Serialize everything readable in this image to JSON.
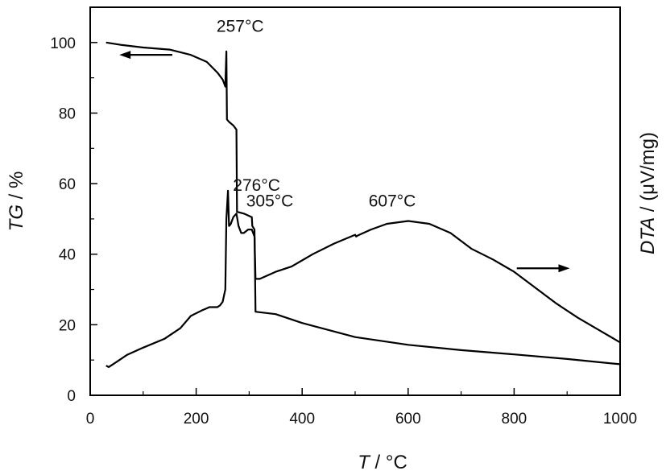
{
  "chart_data": {
    "type": "line",
    "xlabel": {
      "var": "T",
      "unit": " / °C"
    },
    "ylabel_left": {
      "var": "TG",
      "unit": " / %"
    },
    "ylabel_right": {
      "var": "DTA",
      "unit": " / (μV/mg)"
    },
    "xlim": [
      0,
      1000
    ],
    "ylim": [
      0,
      110
    ],
    "x_ticks": [
      "0",
      "200",
      "400",
      "600",
      "800",
      "1000"
    ],
    "x_tick_values": [
      0,
      200,
      400,
      600,
      800,
      1000
    ],
    "y_ticks": [
      "0",
      "20",
      "40",
      "60",
      "80",
      "100"
    ],
    "y_tick_values": [
      0,
      20,
      40,
      60,
      80,
      100
    ],
    "grid": false,
    "legend": "none",
    "series": [
      {
        "axis": "left",
        "x": [
          30,
          60,
          100,
          150,
          190,
          220,
          240,
          250,
          255,
          257,
          258,
          262,
          270,
          276,
          277,
          290,
          305,
          306,
          310,
          312,
          350,
          400,
          500,
          600,
          700,
          800,
          900,
          1000
        ],
        "values": [
          100,
          99.3,
          98.6,
          98,
          96.5,
          94.5,
          91.5,
          89.5,
          87.5,
          97.5,
          78.2,
          77.5,
          76.5,
          75.3,
          52,
          51.5,
          50.5,
          48,
          47,
          23.7,
          23,
          20.5,
          16.5,
          14.3,
          12.8,
          11.6,
          10.3,
          8.8
        ]
      },
      {
        "axis": "right",
        "x": [
          30,
          35,
          50,
          70,
          100,
          140,
          170,
          190,
          210,
          225,
          240,
          245,
          250,
          255,
          257,
          260,
          262,
          265,
          270,
          276,
          280,
          285,
          290,
          298,
          305,
          310,
          312,
          320,
          350,
          380,
          420,
          460,
          500,
          502,
          505,
          530,
          560,
          600,
          640,
          680,
          720,
          760,
          800,
          840,
          880,
          920,
          960,
          1000
        ],
        "values": [
          8.4,
          8,
          9.5,
          11.5,
          13.5,
          16,
          19,
          22.5,
          24,
          25,
          25,
          25.5,
          26.5,
          30,
          50,
          58,
          48,
          48.5,
          50.5,
          51.5,
          48,
          46,
          46,
          47,
          47,
          45,
          33,
          33,
          35,
          36.5,
          40,
          43,
          45.5,
          45,
          45.3,
          47,
          48.6,
          49.4,
          48.6,
          46,
          41.5,
          38.5,
          35,
          30.5,
          26,
          22,
          18.5,
          15
        ]
      }
    ],
    "annotations": [
      {
        "text": "257°C",
        "x": 283,
        "y": 103
      },
      {
        "text": "276°C",
        "x": 314,
        "y": 58
      },
      {
        "text": "305°C",
        "x": 339,
        "y": 53.5
      },
      {
        "text": "607°C",
        "x": 570,
        "y": 53.5
      }
    ],
    "arrows": [
      {
        "from_x": 155,
        "to_x": 55,
        "y": 96.5,
        "axis": "left"
      },
      {
        "from_x": 805,
        "to_x": 905,
        "y": 36,
        "axis": "right"
      }
    ]
  }
}
